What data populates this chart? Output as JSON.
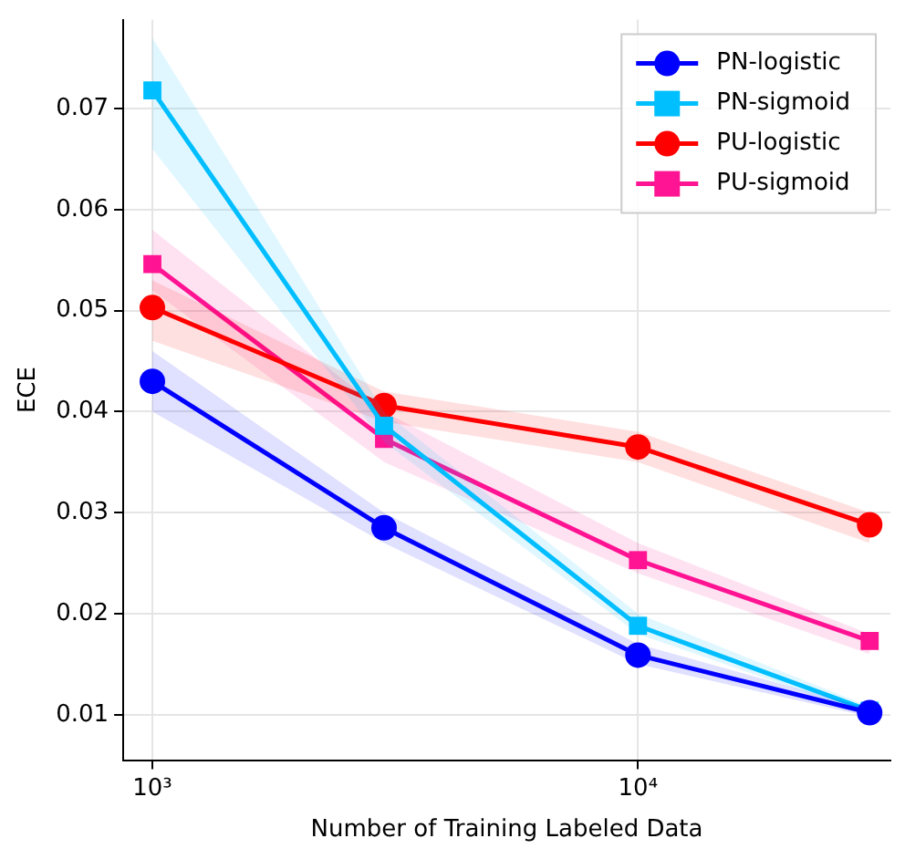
{
  "chart_data": {
    "type": "line",
    "xlabel": "Number of Training Labeled Data",
    "ylabel": "ECE",
    "log": "x",
    "grid": true,
    "legend": "top right",
    "line_style": "solid",
    "x": [
      1000,
      3000,
      10000,
      30000
    ],
    "xlim": [
      871,
      33100
    ],
    "xticks": [
      {
        "value": 1000,
        "label": "10³"
      },
      {
        "value": 10000,
        "label": "10⁴"
      }
    ],
    "ylim": [
      0.0055,
      0.0788
    ],
    "yticks": [
      0.01,
      0.02,
      0.03,
      0.04,
      0.05,
      0.06,
      0.07
    ],
    "series": [
      {
        "name": "PN-logistic",
        "color": "#0000ff",
        "marker": "circle",
        "values": [
          0.043,
          0.0285,
          0.0159,
          0.0102
        ],
        "lower": [
          0.04,
          0.027,
          0.015,
          0.0098
        ],
        "upper": [
          0.046,
          0.03,
          0.017,
          0.0106
        ]
      },
      {
        "name": "PN-sigmoid",
        "color": "#00bfff",
        "marker": "square",
        "values": [
          0.0718,
          0.0386,
          0.0188,
          0.0104
        ],
        "lower": [
          0.066,
          0.037,
          0.018,
          0.01
        ],
        "upper": [
          0.077,
          0.04,
          0.02,
          0.0108
        ]
      },
      {
        "name": "PU-logistic",
        "color": "#ff0000",
        "marker": "circle",
        "values": [
          0.0503,
          0.0406,
          0.0365,
          0.0288
        ],
        "lower": [
          0.047,
          0.039,
          0.035,
          0.027
        ],
        "upper": [
          0.053,
          0.042,
          0.038,
          0.03
        ]
      },
      {
        "name": "PU-sigmoid",
        "color": "#ff1493",
        "marker": "square",
        "values": [
          0.0546,
          0.0373,
          0.0253,
          0.0173
        ],
        "lower": [
          0.052,
          0.035,
          0.024,
          0.016
        ],
        "upper": [
          0.058,
          0.04,
          0.027,
          0.018
        ]
      }
    ]
  }
}
